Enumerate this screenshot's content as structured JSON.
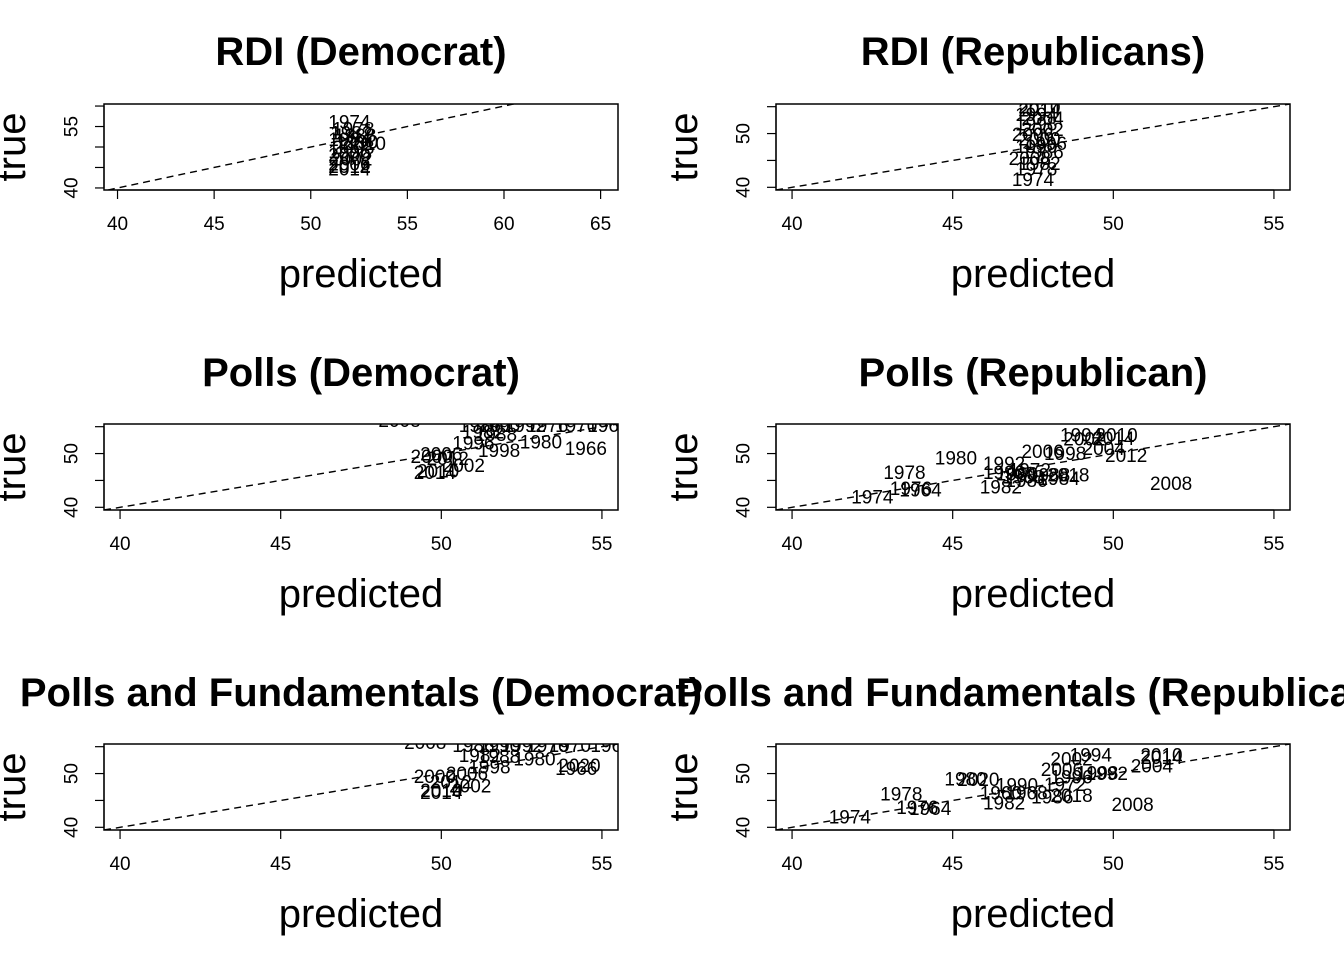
{
  "chart_data": [
    {
      "type": "scatter",
      "title": "RDI (Democrat)",
      "xlabel": "predicted",
      "ylabel": "true",
      "xlim": [
        39.3,
        65.9
      ],
      "ylim": [
        39.5,
        60.5
      ],
      "xticks": [
        40,
        45,
        50,
        55,
        60,
        65
      ],
      "yticks": [
        40,
        45,
        50,
        55,
        60
      ],
      "ytick_labels": [
        "40",
        "",
        "",
        "55",
        ""
      ],
      "reference_line": "y = x, dashed",
      "points": [
        {
          "label": "1974",
          "x": 52.0,
          "y": 55.8
        },
        {
          "label": "1978",
          "x": 52.2,
          "y": 54.2
        },
        {
          "label": "1982",
          "x": 52.1,
          "y": 53.2
        },
        {
          "label": "1988",
          "x": 52.3,
          "y": 52.6
        },
        {
          "label": "1984",
          "x": 52.0,
          "y": 51.6
        },
        {
          "label": "1990",
          "x": 52.4,
          "y": 51.0
        },
        {
          "label": "2010",
          "x": 52.8,
          "y": 50.6
        },
        {
          "label": "2008",
          "x": 52.2,
          "y": 49.6
        },
        {
          "label": "1996",
          "x": 52.0,
          "y": 48.6
        },
        {
          "label": "2000",
          "x": 52.0,
          "y": 47.8
        },
        {
          "label": "2002",
          "x": 52.1,
          "y": 46.8
        },
        {
          "label": "2006",
          "x": 52.0,
          "y": 45.6
        },
        {
          "label": "2012",
          "x": 52.0,
          "y": 45.0
        },
        {
          "label": "2014",
          "x": 52.0,
          "y": 44.4
        }
      ]
    },
    {
      "type": "scatter",
      "title": "RDI (Republicans)",
      "xlabel": "predicted",
      "ylabel": "true",
      "xlim": [
        39.5,
        55.5
      ],
      "ylim": [
        39.5,
        55.5
      ],
      "xticks": [
        40,
        45,
        50,
        55
      ],
      "yticks": [
        40,
        45,
        50,
        55
      ],
      "ytick_labels": [
        "40",
        "",
        "50",
        ""
      ],
      "reference_line": "y = x, dashed",
      "points": [
        {
          "label": "2010",
          "x": 47.7,
          "y": 54.8
        },
        {
          "label": "2014",
          "x": 47.7,
          "y": 54.2
        },
        {
          "label": "1994",
          "x": 47.6,
          "y": 53.4
        },
        {
          "label": "2004",
          "x": 47.8,
          "y": 52.6
        },
        {
          "label": "1998",
          "x": 47.6,
          "y": 51.6
        },
        {
          "label": "2002",
          "x": 47.8,
          "y": 50.6
        },
        {
          "label": "2006",
          "x": 47.5,
          "y": 49.6
        },
        {
          "label": "2000",
          "x": 47.7,
          "y": 48.8
        },
        {
          "label": "1996",
          "x": 47.9,
          "y": 48.0
        },
        {
          "label": "1990",
          "x": 47.6,
          "y": 47.4
        },
        {
          "label": "1986",
          "x": 47.8,
          "y": 46.4
        },
        {
          "label": "2008",
          "x": 47.4,
          "y": 45.2
        },
        {
          "label": "1982",
          "x": 47.7,
          "y": 44.2
        },
        {
          "label": "1978",
          "x": 47.6,
          "y": 43.2
        },
        {
          "label": "1974",
          "x": 47.5,
          "y": 41.3
        }
      ]
    },
    {
      "type": "scatter",
      "title": "Polls (Democrat)",
      "xlabel": "predicted",
      "ylabel": "true",
      "xlim": [
        39.5,
        55.5
      ],
      "ylim": [
        39.5,
        55.5
      ],
      "xticks": [
        40,
        45,
        50,
        55
      ],
      "yticks": [
        40,
        45,
        50,
        55
      ],
      "ytick_labels": [
        "40",
        "",
        "50",
        ""
      ],
      "reference_line": "y = x, dashed",
      "points": [
        {
          "label": "2008",
          "x": 48.7,
          "y": 56.0
        },
        {
          "label": "1986",
          "x": 51.2,
          "y": 55.0
        },
        {
          "label": "1990",
          "x": 51.8,
          "y": 55.0
        },
        {
          "label": "1992",
          "x": 52.6,
          "y": 55.0
        },
        {
          "label": "1976",
          "x": 53.3,
          "y": 55.0
        },
        {
          "label": "1970",
          "x": 54.2,
          "y": 55.0
        },
        {
          "label": "1962",
          "x": 55.2,
          "y": 55.0
        },
        {
          "label": "1982",
          "x": 51.3,
          "y": 53.8
        },
        {
          "label": "1988",
          "x": 51.7,
          "y": 53.4
        },
        {
          "label": "1980",
          "x": 53.1,
          "y": 52.0
        },
        {
          "label": "1996",
          "x": 51.0,
          "y": 51.8
        },
        {
          "label": "1966",
          "x": 54.5,
          "y": 50.8
        },
        {
          "label": "2006",
          "x": 50.0,
          "y": 49.7
        },
        {
          "label": "1998",
          "x": 51.8,
          "y": 50.4
        },
        {
          "label": "2000",
          "x": 49.7,
          "y": 49.3
        },
        {
          "label": "2012",
          "x": 50.2,
          "y": 48.9
        },
        {
          "label": "2002",
          "x": 50.7,
          "y": 47.6
        },
        {
          "label": "2010",
          "x": 49.9,
          "y": 46.6
        },
        {
          "label": "2014",
          "x": 49.8,
          "y": 46.3
        }
      ]
    },
    {
      "type": "scatter",
      "title": "Polls (Republican)",
      "xlabel": "predicted",
      "ylabel": "true",
      "xlim": [
        39.5,
        55.5
      ],
      "ylim": [
        39.5,
        55.5
      ],
      "xticks": [
        40,
        45,
        50,
        55
      ],
      "yticks": [
        40,
        45,
        50,
        55
      ],
      "ytick_labels": [
        "40",
        "",
        "50",
        ""
      ],
      "reference_line": "y = x, dashed",
      "points": [
        {
          "label": "1994",
          "x": 49.0,
          "y": 53.3
        },
        {
          "label": "2010",
          "x": 50.1,
          "y": 53.3
        },
        {
          "label": "2002",
          "x": 49.1,
          "y": 52.5
        },
        {
          "label": "2014",
          "x": 50.0,
          "y": 52.6
        },
        {
          "label": "2004",
          "x": 49.7,
          "y": 50.8
        },
        {
          "label": "2006",
          "x": 47.8,
          "y": 50.2
        },
        {
          "label": "1998",
          "x": 48.5,
          "y": 49.8
        },
        {
          "label": "2012",
          "x": 50.4,
          "y": 49.5
        },
        {
          "label": "1980",
          "x": 45.1,
          "y": 49.0
        },
        {
          "label": "1992",
          "x": 46.6,
          "y": 48.0
        },
        {
          "label": "1978",
          "x": 43.5,
          "y": 46.3
        },
        {
          "label": "1990",
          "x": 46.6,
          "y": 46.3
        },
        {
          "label": "1972",
          "x": 47.4,
          "y": 46.8
        },
        {
          "label": "1960",
          "x": 47.0,
          "y": 46.0
        },
        {
          "label": "1968",
          "x": 47.2,
          "y": 45.5
        },
        {
          "label": "1988",
          "x": 48.0,
          "y": 45.8
        },
        {
          "label": "1984",
          "x": 48.3,
          "y": 45.2
        },
        {
          "label": "1986",
          "x": 47.3,
          "y": 44.8
        },
        {
          "label": "2018",
          "x": 48.6,
          "y": 45.8
        },
        {
          "label": "1982",
          "x": 46.5,
          "y": 43.6
        },
        {
          "label": "1976",
          "x": 43.7,
          "y": 43.3
        },
        {
          "label": "1964",
          "x": 44.0,
          "y": 43.0
        },
        {
          "label": "2008",
          "x": 51.8,
          "y": 44.2
        },
        {
          "label": "1974",
          "x": 42.5,
          "y": 41.7
        }
      ]
    },
    {
      "type": "scatter",
      "title": "Polls and Fundamentals (Democrat)",
      "xlabel": "predicted",
      "ylabel": "true",
      "xlim": [
        39.5,
        55.5
      ],
      "ylim": [
        39.5,
        55.5
      ],
      "xticks": [
        40,
        45,
        50,
        55
      ],
      "yticks": [
        40,
        45,
        50,
        55
      ],
      "ytick_labels": [
        "40",
        "",
        "50",
        ""
      ],
      "reference_line": "y = x, dashed",
      "points": [
        {
          "label": "2008",
          "x": 49.5,
          "y": 55.6
        },
        {
          "label": "1986",
          "x": 51.0,
          "y": 55.0
        },
        {
          "label": "1990",
          "x": 51.8,
          "y": 55.0
        },
        {
          "label": "1992",
          "x": 52.5,
          "y": 55.0
        },
        {
          "label": "1976",
          "x": 53.3,
          "y": 55.0
        },
        {
          "label": "1970",
          "x": 54.0,
          "y": 55.0
        },
        {
          "label": "1962",
          "x": 55.3,
          "y": 55.0
        },
        {
          "label": "1982",
          "x": 51.2,
          "y": 53.2
        },
        {
          "label": "1988",
          "x": 51.8,
          "y": 53.0
        },
        {
          "label": "1980",
          "x": 52.9,
          "y": 52.5
        },
        {
          "label": "1998",
          "x": 51.5,
          "y": 51.0
        },
        {
          "label": "2020",
          "x": 54.3,
          "y": 51.3
        },
        {
          "label": "1966",
          "x": 54.2,
          "y": 50.8
        },
        {
          "label": "2000",
          "x": 49.8,
          "y": 49.3
        },
        {
          "label": "2006",
          "x": 50.8,
          "y": 49.8
        },
        {
          "label": "2012",
          "x": 50.3,
          "y": 48.2
        },
        {
          "label": "2002",
          "x": 50.9,
          "y": 47.5
        },
        {
          "label": "2010",
          "x": 50.0,
          "y": 46.7
        },
        {
          "label": "2014",
          "x": 50.0,
          "y": 46.3
        }
      ]
    },
    {
      "type": "scatter",
      "title": "Polls and Fundamentals (Republican)",
      "xlabel": "predicted",
      "ylabel": "true",
      "xlim": [
        39.5,
        55.5
      ],
      "ylim": [
        39.5,
        55.5
      ],
      "xticks": [
        40,
        45,
        50,
        55
      ],
      "yticks": [
        40,
        45,
        50,
        55
      ],
      "ytick_labels": [
        "40",
        "",
        "50",
        ""
      ],
      "reference_line": "y = x, dashed",
      "points": [
        {
          "label": "1994",
          "x": 49.3,
          "y": 53.3
        },
        {
          "label": "2010",
          "x": 51.5,
          "y": 53.3
        },
        {
          "label": "2014",
          "x": 51.5,
          "y": 52.8
        },
        {
          "label": "2002",
          "x": 48.7,
          "y": 52.5
        },
        {
          "label": "2004",
          "x": 51.2,
          "y": 51.2
        },
        {
          "label": "2006",
          "x": 48.4,
          "y": 50.6
        },
        {
          "label": "1998",
          "x": 49.5,
          "y": 49.9
        },
        {
          "label": "1992",
          "x": 49.8,
          "y": 49.8
        },
        {
          "label": "1980",
          "x": 45.4,
          "y": 48.8
        },
        {
          "label": "2020",
          "x": 45.8,
          "y": 48.7
        },
        {
          "label": "1996",
          "x": 48.7,
          "y": 49.2
        },
        {
          "label": "1972",
          "x": 48.5,
          "y": 47.8
        },
        {
          "label": "1990",
          "x": 47.0,
          "y": 47.7
        },
        {
          "label": "1960",
          "x": 46.5,
          "y": 46.2
        },
        {
          "label": "1968",
          "x": 47.3,
          "y": 46.2
        },
        {
          "label": "1986",
          "x": 48.1,
          "y": 45.5
        },
        {
          "label": "2018",
          "x": 48.7,
          "y": 45.7
        },
        {
          "label": "1978",
          "x": 43.4,
          "y": 46.0
        },
        {
          "label": "1976",
          "x": 43.9,
          "y": 43.5
        },
        {
          "label": "1964",
          "x": 44.3,
          "y": 43.3
        },
        {
          "label": "1982",
          "x": 46.6,
          "y": 44.3
        },
        {
          "label": "2008",
          "x": 50.6,
          "y": 44.1
        },
        {
          "label": "1974",
          "x": 41.8,
          "y": 41.7
        }
      ]
    }
  ]
}
